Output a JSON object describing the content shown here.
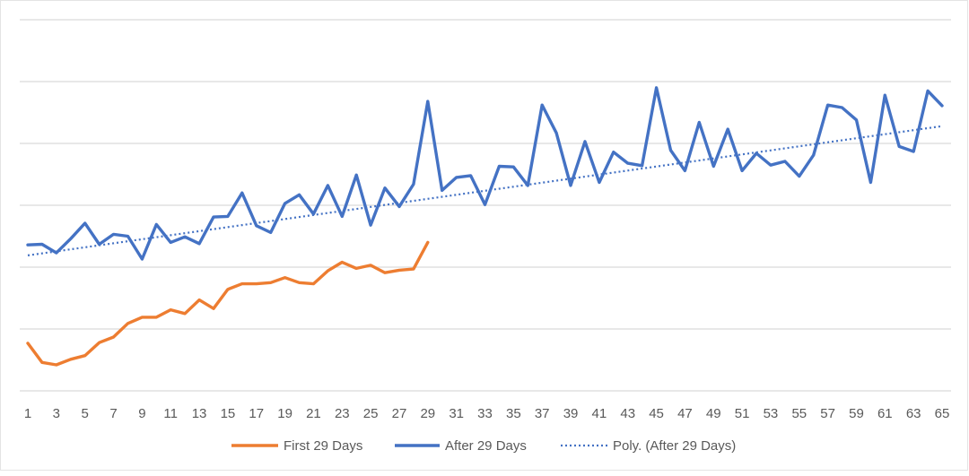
{
  "chart_data": {
    "type": "line",
    "title": "",
    "xlabel": "",
    "ylabel": "",
    "x_ticks": [
      "1",
      "3",
      "5",
      "7",
      "9",
      "11",
      "13",
      "15",
      "17",
      "19",
      "21",
      "23",
      "25",
      "27",
      "29",
      "31",
      "33",
      "35",
      "37",
      "39",
      "41",
      "43",
      "45",
      "47",
      "49",
      "51",
      "53",
      "55",
      "57",
      "59",
      "61",
      "63",
      "65"
    ],
    "xlim": [
      1,
      65
    ],
    "ylim": [
      0,
      6
    ],
    "y_gridlines": [
      1,
      2,
      3,
      4,
      5,
      6
    ],
    "y_tick_labels_visible": false,
    "legend_position": "bottom",
    "series": [
      {
        "name": "First 29 Days",
        "color": "#ED7D31",
        "line_style": "solid",
        "x_start": 1,
        "values": [
          0.77,
          0.46,
          0.42,
          0.51,
          0.57,
          0.78,
          0.87,
          1.09,
          1.19,
          1.19,
          1.31,
          1.25,
          1.47,
          1.33,
          1.64,
          1.73,
          1.73,
          1.75,
          1.83,
          1.75,
          1.73,
          1.94,
          2.08,
          1.98,
          2.03,
          1.91,
          1.95,
          1.97,
          2.4
        ]
      },
      {
        "name": "After 29 Days",
        "color": "#4472C4",
        "line_style": "solid",
        "x_start": 1,
        "values": [
          2.36,
          2.37,
          2.23,
          2.46,
          2.71,
          2.37,
          2.53,
          2.5,
          2.13,
          2.69,
          2.4,
          2.49,
          2.38,
          2.81,
          2.82,
          3.2,
          2.67,
          2.56,
          3.03,
          3.17,
          2.86,
          3.32,
          2.82,
          3.49,
          2.68,
          3.28,
          2.98,
          3.34,
          4.68,
          3.24,
          3.45,
          3.48,
          3.01,
          3.63,
          3.62,
          3.32,
          4.62,
          4.17,
          3.32,
          4.03,
          3.37,
          3.86,
          3.68,
          3.64,
          4.9,
          3.89,
          3.56,
          4.34,
          3.63,
          4.23,
          3.56,
          3.84,
          3.65,
          3.71,
          3.47,
          3.81,
          4.62,
          4.58,
          4.38,
          3.37,
          4.78,
          3.95,
          3.87,
          4.85,
          4.61
        ]
      },
      {
        "name": "Poly. (After 29 Days)",
        "color": "#4472C4",
        "line_style": "dotted",
        "x_start": 1,
        "x_end": 65,
        "trend_start": 2.19,
        "trend_end": 4.28
      }
    ]
  }
}
